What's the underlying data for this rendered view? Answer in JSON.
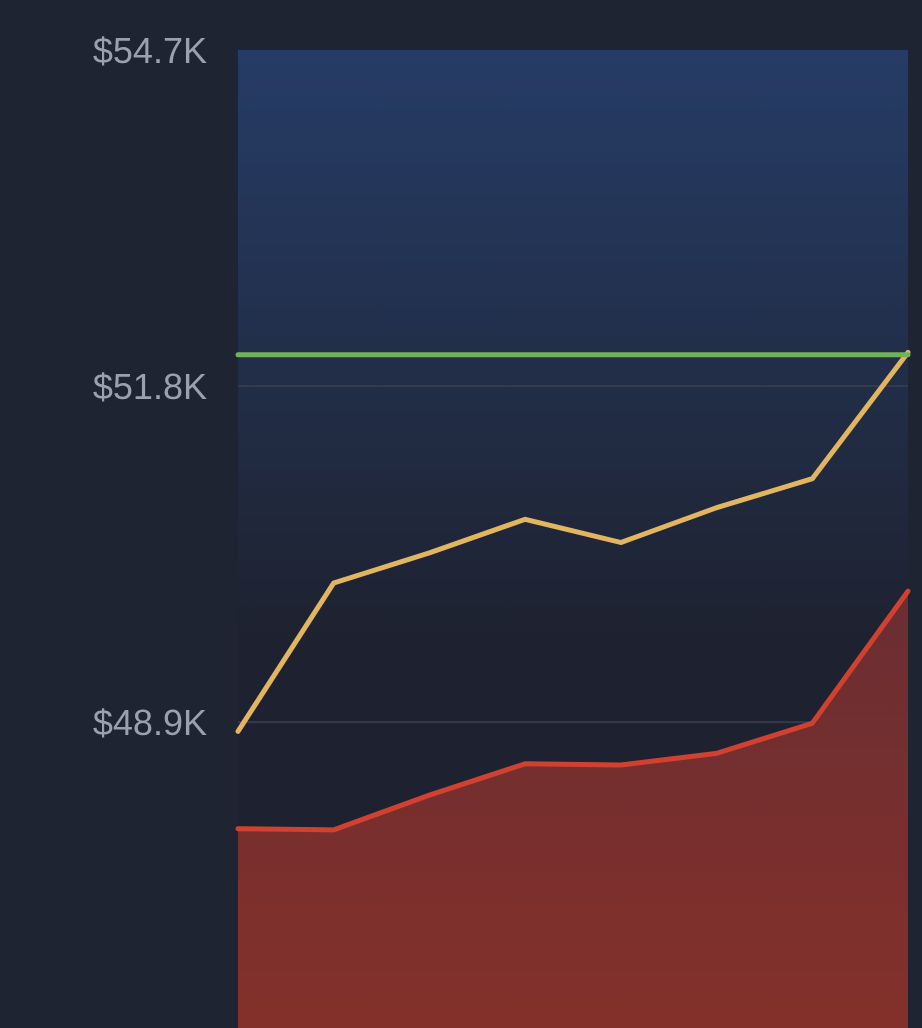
{
  "chart_data": {
    "type": "line",
    "title": "",
    "xlabel": "",
    "ylabel": "",
    "y_tick_labels": [
      "$54.7K",
      "$51.8K",
      "$48.9K"
    ],
    "y_ticks": [
      54.7,
      51.8,
      48.9
    ],
    "y_unit": "$K",
    "ylim": [
      46.26,
      54.7
    ],
    "x_count": 8,
    "grid": "horizontal",
    "legend": "none",
    "series": [
      {
        "type": "area",
        "color": "#d2402f",
        "values": [
          47.98,
          47.97,
          48.27,
          48.54,
          48.53,
          48.63,
          48.89,
          50.03
        ]
      },
      {
        "type": "line",
        "color": "#e2b560",
        "values": [
          48.82,
          50.1,
          50.36,
          50.65,
          50.45,
          50.75,
          51.0,
          52.09
        ]
      },
      {
        "type": "line",
        "color": "#72b35a",
        "values": [
          52.07,
          52.07,
          52.07,
          52.07,
          52.07,
          52.07,
          52.07,
          52.07
        ]
      }
    ],
    "colors": {
      "page_background": "#1f2433",
      "plot_top": "#263c66",
      "plot_bottom": "#1e2230",
      "grid": "#323a4c",
      "tick_text": "#9aa0ad"
    }
  }
}
